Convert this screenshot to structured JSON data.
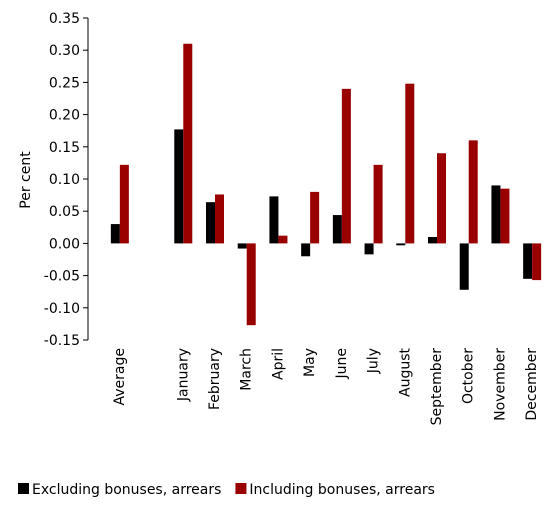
{
  "chart_data": {
    "type": "bar",
    "y_label": "Per cent",
    "categories": [
      "Average",
      null,
      "January",
      "February",
      "March",
      "April",
      "May",
      "June",
      "July",
      "August",
      "September",
      "October",
      "November",
      "December"
    ],
    "series": [
      {
        "name": "Excluding bonuses, arrears",
        "color": "#000000",
        "values": [
          0.03,
          null,
          0.177,
          0.064,
          -0.008,
          0.073,
          -0.02,
          0.044,
          -0.017,
          -0.003,
          0.01,
          -0.072,
          0.09,
          -0.055
        ]
      },
      {
        "name": "Including bonuses, arrears",
        "color": "#990000",
        "values": [
          0.122,
          null,
          0.31,
          0.076,
          -0.127,
          0.012,
          0.08,
          0.24,
          0.122,
          0.248,
          0.14,
          0.16,
          0.085,
          -0.057
        ]
      }
    ],
    "ylim": [
      -0.15,
      0.35
    ],
    "yticks": [
      -0.15,
      {
        "value": -0.1,
        "label": "-0.10"
      },
      -0.05,
      {
        "value": 0,
        "label": "0.00"
      },
      0.05,
      {
        "value": 0.1,
        "label": "0.10"
      },
      0.15,
      {
        "value": 0.2,
        "label": "0.20"
      },
      0.25,
      {
        "value": 0.3,
        "label": "0.30"
      },
      0.35
    ],
    "legend": "bottom"
  }
}
